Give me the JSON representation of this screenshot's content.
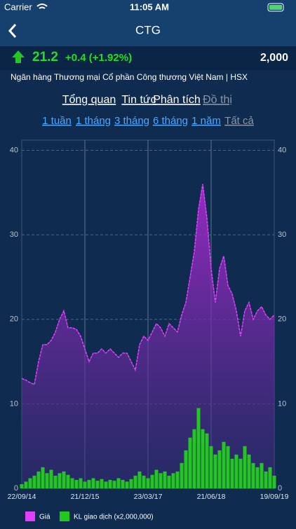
{
  "status_bar": {
    "carrier": "Carrier",
    "time": "11:05 AM"
  },
  "header": {
    "title": "CTG"
  },
  "quote": {
    "price": "21.2",
    "change": "+0.4 (+1.92%)",
    "volume": "2,000",
    "company": "Ngân hàng Thương mại Cổ phần Công thương Việt Nam | HSX"
  },
  "tabs": [
    "Tổng quan",
    "Tin tức",
    "Phân tích",
    "Đồ thị"
  ],
  "ranges": [
    "1 tuần",
    "1 tháng",
    "3 tháng",
    "6 tháng",
    "1 năm",
    "Tất cả"
  ],
  "chart_data": {
    "type": "line",
    "categories": [
      "22/09/14",
      null,
      null,
      null,
      null,
      null,
      null,
      null,
      null,
      null,
      null,
      null,
      null,
      null,
      null,
      "21/12/15",
      null,
      null,
      null,
      null,
      null,
      null,
      null,
      null,
      null,
      null,
      null,
      null,
      null,
      null,
      "23/03/17",
      null,
      null,
      null,
      null,
      null,
      null,
      null,
      null,
      null,
      null,
      null,
      null,
      null,
      null,
      "21/06/18",
      null,
      null,
      null,
      null,
      null,
      null,
      null,
      null,
      null,
      null,
      null,
      null,
      null,
      null,
      "19/09/19"
    ],
    "series": [
      {
        "name": "Giá",
        "color": "#e040fb",
        "values": [
          13,
          12.8,
          12.5,
          12.3,
          15,
          17,
          17,
          17.5,
          18.5,
          20,
          21,
          19,
          19,
          18.8,
          18,
          16.5,
          15,
          16,
          16,
          16.5,
          16,
          16.5,
          16,
          15.5,
          16,
          16,
          15,
          14,
          17,
          18,
          17.5,
          18.5,
          19.5,
          19,
          18,
          19.5,
          19,
          18.5,
          20.5,
          22,
          25,
          28,
          33,
          36,
          32,
          26,
          22,
          26,
          27.5,
          24,
          23,
          21,
          18,
          21,
          22,
          20,
          21,
          21.5,
          20.5,
          20,
          20.5
        ]
      },
      {
        "name": "KL giao dịch (x2,000,000)",
        "color": "#22c71f",
        "values": [
          0.5,
          0.8,
          1.2,
          1.5,
          2,
          2.5,
          1.8,
          2.2,
          1.5,
          1.8,
          2,
          1.6,
          1.2,
          1,
          1.2,
          0.8,
          1,
          1.2,
          0.9,
          1.1,
          0.8,
          1,
          0.9,
          1.2,
          1,
          0.8,
          1.1,
          1.5,
          2,
          1.5,
          1.2,
          1.6,
          2.2,
          1.8,
          2,
          1.5,
          1.8,
          2,
          3,
          4.5,
          6,
          7,
          9.5,
          7,
          6.5,
          5,
          4,
          4.5,
          5.5,
          5,
          3.5,
          4,
          3.5,
          5,
          4,
          3,
          2.5,
          3,
          2,
          2.5,
          1.5
        ]
      }
    ],
    "ylim": [
      0,
      41.2
    ],
    "yticks": [
      0,
      10,
      20,
      30,
      40
    ],
    "y2lim": [
      0,
      41.2
    ],
    "y2ticks": [
      0,
      10,
      20,
      30,
      40
    ],
    "grid": true
  }
}
